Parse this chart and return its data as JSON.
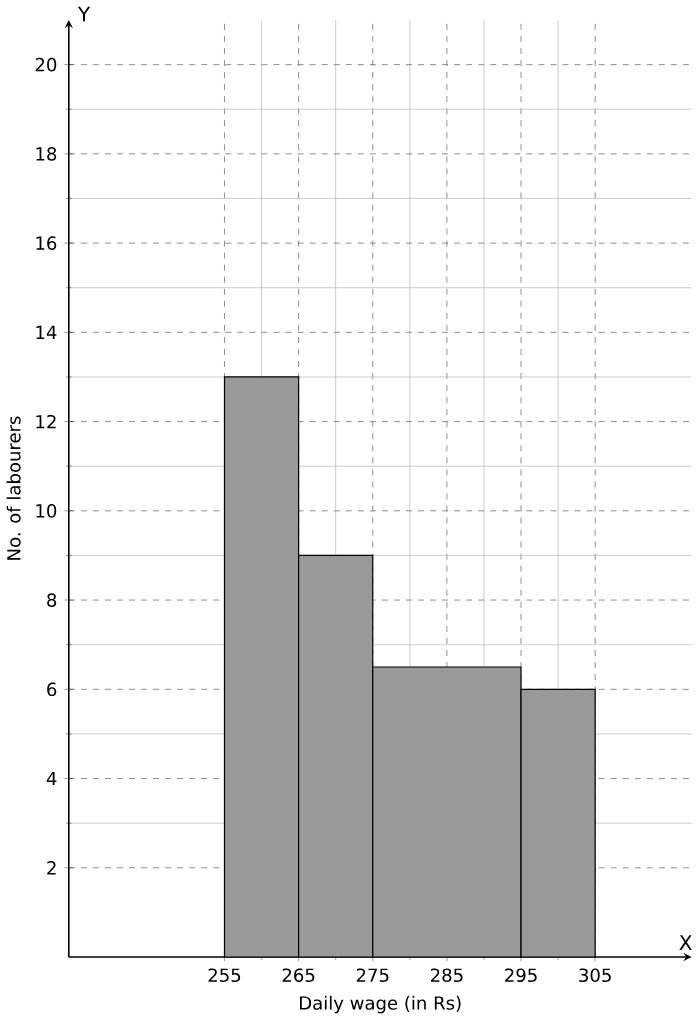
{
  "chart_data": {
    "type": "histogram",
    "xlabel": "Daily wage (in Rs)",
    "ylabel": "No. of labourers",
    "bins": [
      255,
      265,
      275,
      295,
      305
    ],
    "values": [
      13,
      9,
      6.5,
      6
    ],
    "color": "#999999",
    "xlim": [
      234,
      318
    ],
    "ylim": [
      0,
      21
    ],
    "xticks": [
      255,
      265,
      275,
      285,
      295,
      305
    ],
    "yticks": [
      2,
      4,
      6,
      8,
      10,
      12,
      14,
      16,
      18,
      20
    ],
    "grid": true,
    "annotations": [
      "Y",
      "X"
    ]
  }
}
